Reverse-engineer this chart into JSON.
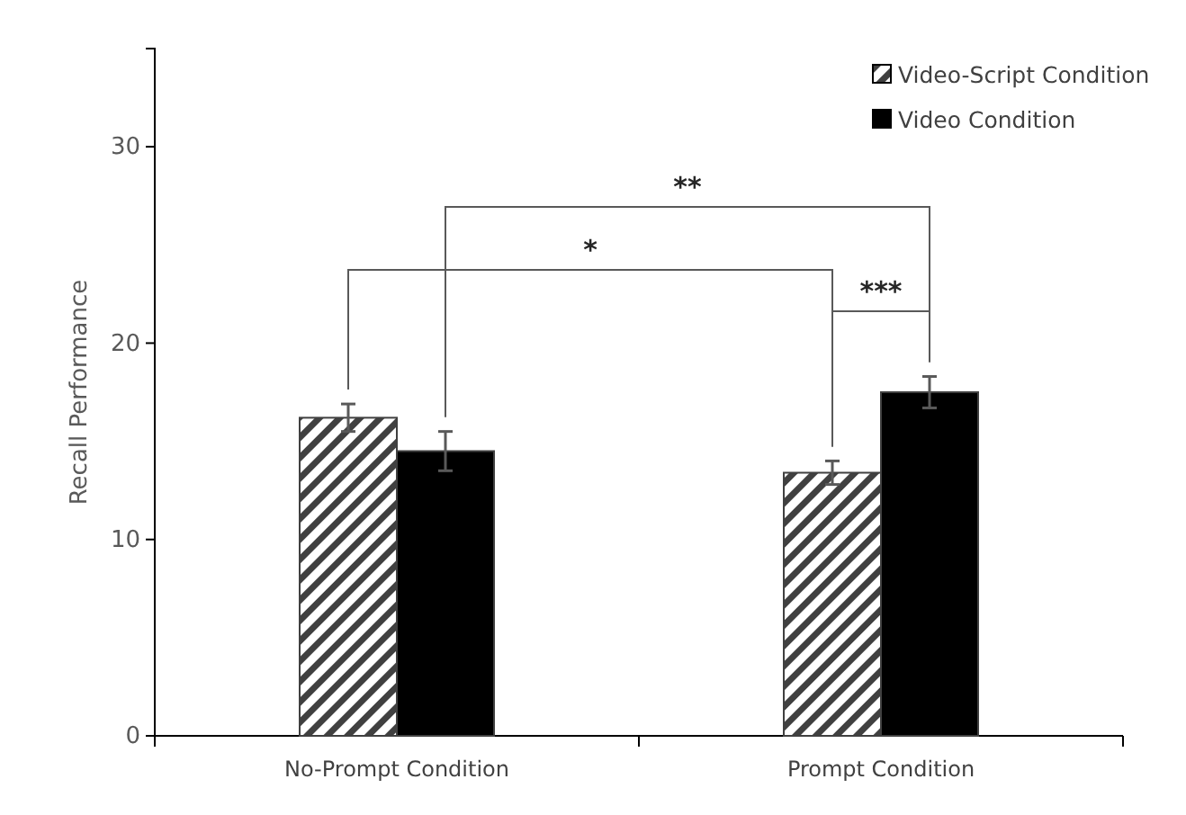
{
  "chart_data": {
    "type": "bar",
    "ylabel": "Recall Performance",
    "categories": [
      "No-Prompt Condition",
      "Prompt Condition"
    ],
    "series": [
      {
        "name": "Video-Script Condition",
        "color": "#404040",
        "values": [
          16.2,
          13.4
        ],
        "errors": [
          0.7,
          0.6
        ]
      },
      {
        "name": "Video Condition",
        "color": "#000000",
        "values": [
          14.5,
          17.5
        ],
        "errors": [
          1.0,
          0.8
        ]
      }
    ],
    "ylim": [
      0,
      35
    ],
    "yticks": [
      0,
      10,
      20,
      30
    ],
    "legend": "top right",
    "annotations": [
      "*",
      "**",
      "***"
    ]
  }
}
